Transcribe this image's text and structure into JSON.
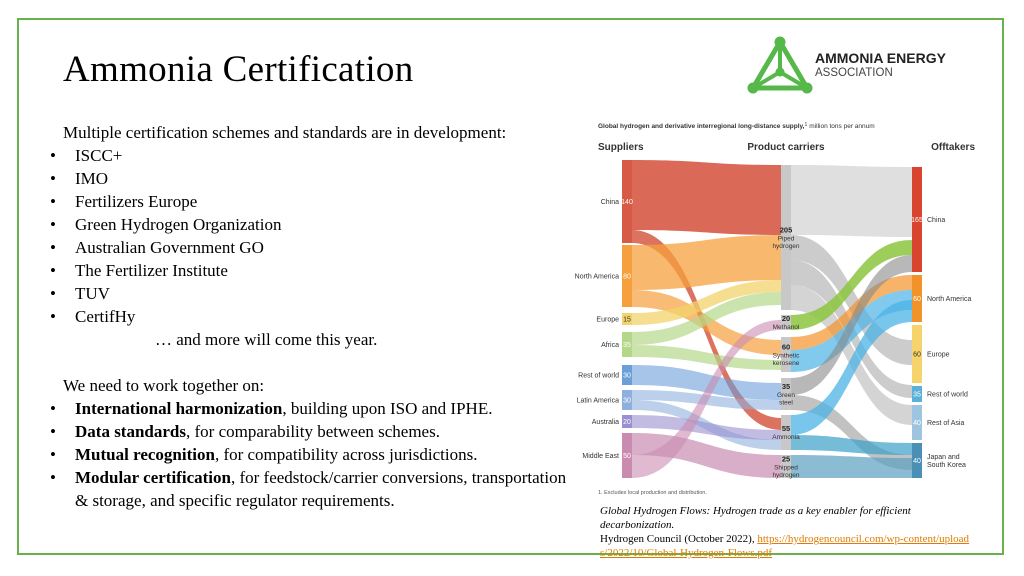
{
  "header": {
    "title": "Ammonia Certification",
    "logo": {
      "line1": "AMMONIA ENERGY",
      "line2": "ASSOCIATION"
    }
  },
  "intro": "Multiple certification schemes and standards are in development:",
  "schemes": [
    "ISCC+",
    "IMO",
    "Fertilizers Europe",
    "Green Hydrogen Organization",
    "Australian Government GO",
    "The Fertilizer Institute",
    "TUV",
    "CertifHy"
  ],
  "closing": "… and more will come this year.",
  "work_intro": "We need to work together on:",
  "work_items": [
    {
      "bold": "International harmonization",
      "rest": ", building upon ISO and IPHE."
    },
    {
      "bold": "Data standards",
      "rest": ", for comparability between schemes."
    },
    {
      "bold": "Mutual recognition",
      "rest": ", for compatibility across jurisdictions."
    },
    {
      "bold": "Modular certification",
      "rest": ", for feedstock/carrier conversions, transportation & storage, and specific regulator requirements."
    }
  ],
  "figure": {
    "title": "Global hydrogen and derivative interregional long-distance supply,",
    "title_sup": "1",
    "title_unit": "million tons per annum",
    "columns": [
      "Suppliers",
      "Product carriers",
      "Offtakers"
    ],
    "suppliers": [
      {
        "label": "China",
        "value": 140
      },
      {
        "label": "North America",
        "value": 80
      },
      {
        "label": "Europe",
        "value": 15
      },
      {
        "label": "Africa",
        "value": 35
      },
      {
        "label": "Rest of world",
        "value": 30
      },
      {
        "label": "Latin America",
        "value": 30
      },
      {
        "label": "Australia",
        "value": 20
      },
      {
        "label": "Middle East",
        "value": 50
      }
    ],
    "carriers": [
      {
        "value": 205,
        "label": [
          "Piped",
          "hydrogen"
        ]
      },
      {
        "value": 20,
        "label": [
          "Methanol"
        ]
      },
      {
        "value": 60,
        "label": [
          "Synthetic",
          "kerosene"
        ]
      },
      {
        "value": 35,
        "label": [
          "Green",
          "steel"
        ]
      },
      {
        "value": 55,
        "label": [
          "Ammonia"
        ]
      },
      {
        "value": 25,
        "label": [
          "Shipped",
          "hydrogen"
        ]
      }
    ],
    "offtakers": [
      {
        "label": [
          "China"
        ],
        "value": 165
      },
      {
        "label": [
          "North America"
        ],
        "value": 60
      },
      {
        "label": [
          "Europe"
        ],
        "value": 60
      },
      {
        "label": [
          "Rest of world"
        ],
        "value": 35
      },
      {
        "label": [
          "Rest of Asia"
        ],
        "value": 40
      },
      {
        "label": [
          "Japan and",
          "South Korea"
        ],
        "value": 40
      }
    ],
    "footnote": "1. Excludes local production and distribution."
  },
  "caption": {
    "title": "Global Hydrogen Flows: Hydrogen trade as a key enabler for efficient decarbonization.",
    "source": "Hydrogen Council (October 2022),",
    "link": "https://hydrogencouncil.com/wp-content/uploads/2022/10/Global-Hydrogen-Flows.pdf"
  }
}
